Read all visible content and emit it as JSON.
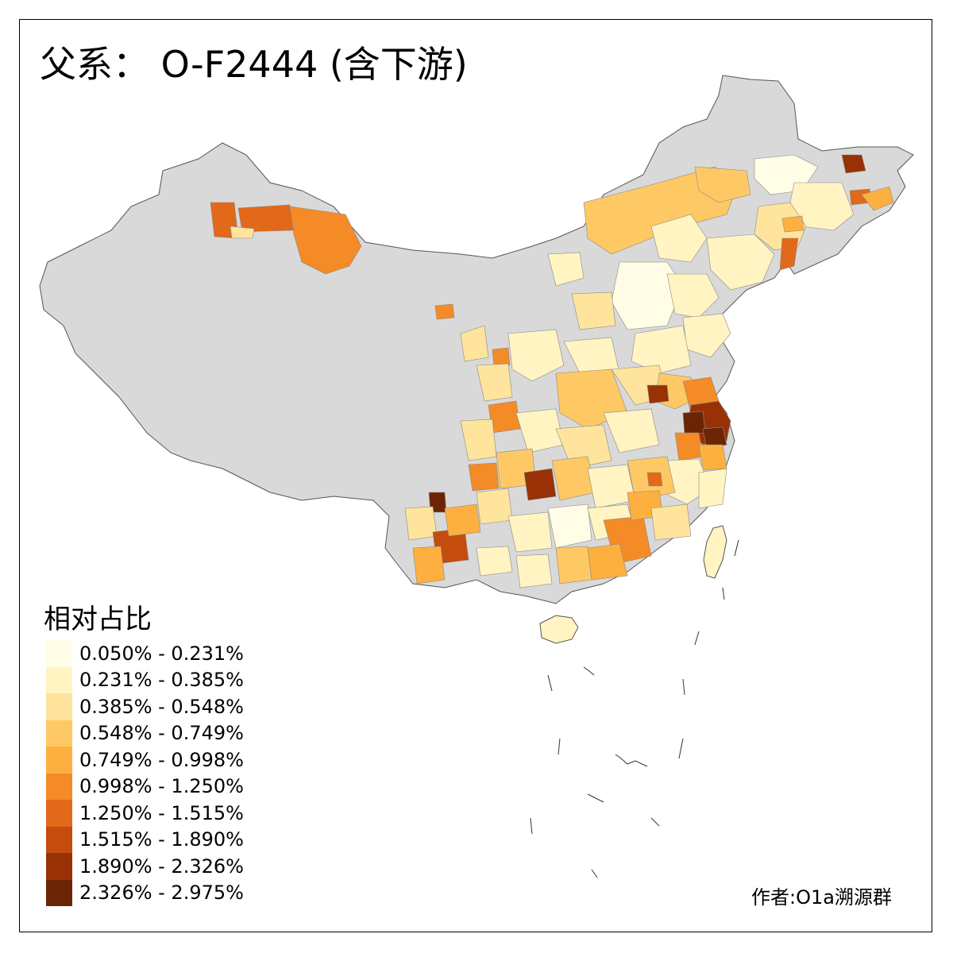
{
  "title": "父系： O-F2444 (含下游)",
  "legend": {
    "title": "相对占比",
    "bins": [
      {
        "label": "0.050% - 0.231%",
        "color": "#fffde6"
      },
      {
        "label": "0.231% - 0.385%",
        "color": "#fff4c2"
      },
      {
        "label": "0.385% - 0.548%",
        "color": "#fee49c"
      },
      {
        "label": "0.548% - 0.749%",
        "color": "#fec964"
      },
      {
        "label": "0.749% - 0.998%",
        "color": "#fdb03f"
      },
      {
        "label": "0.998% - 1.250%",
        "color": "#f48b26"
      },
      {
        "label": "1.250% - 1.515%",
        "color": "#e2681a"
      },
      {
        "label": "1.515% - 1.890%",
        "color": "#c44c0e"
      },
      {
        "label": "1.890% - 2.326%",
        "color": "#983206"
      },
      {
        "label": "2.326% - 2.975%",
        "color": "#6b2404"
      }
    ]
  },
  "no_data_color": "#d9d9d9",
  "credit": "作者:O1a溯源群"
}
